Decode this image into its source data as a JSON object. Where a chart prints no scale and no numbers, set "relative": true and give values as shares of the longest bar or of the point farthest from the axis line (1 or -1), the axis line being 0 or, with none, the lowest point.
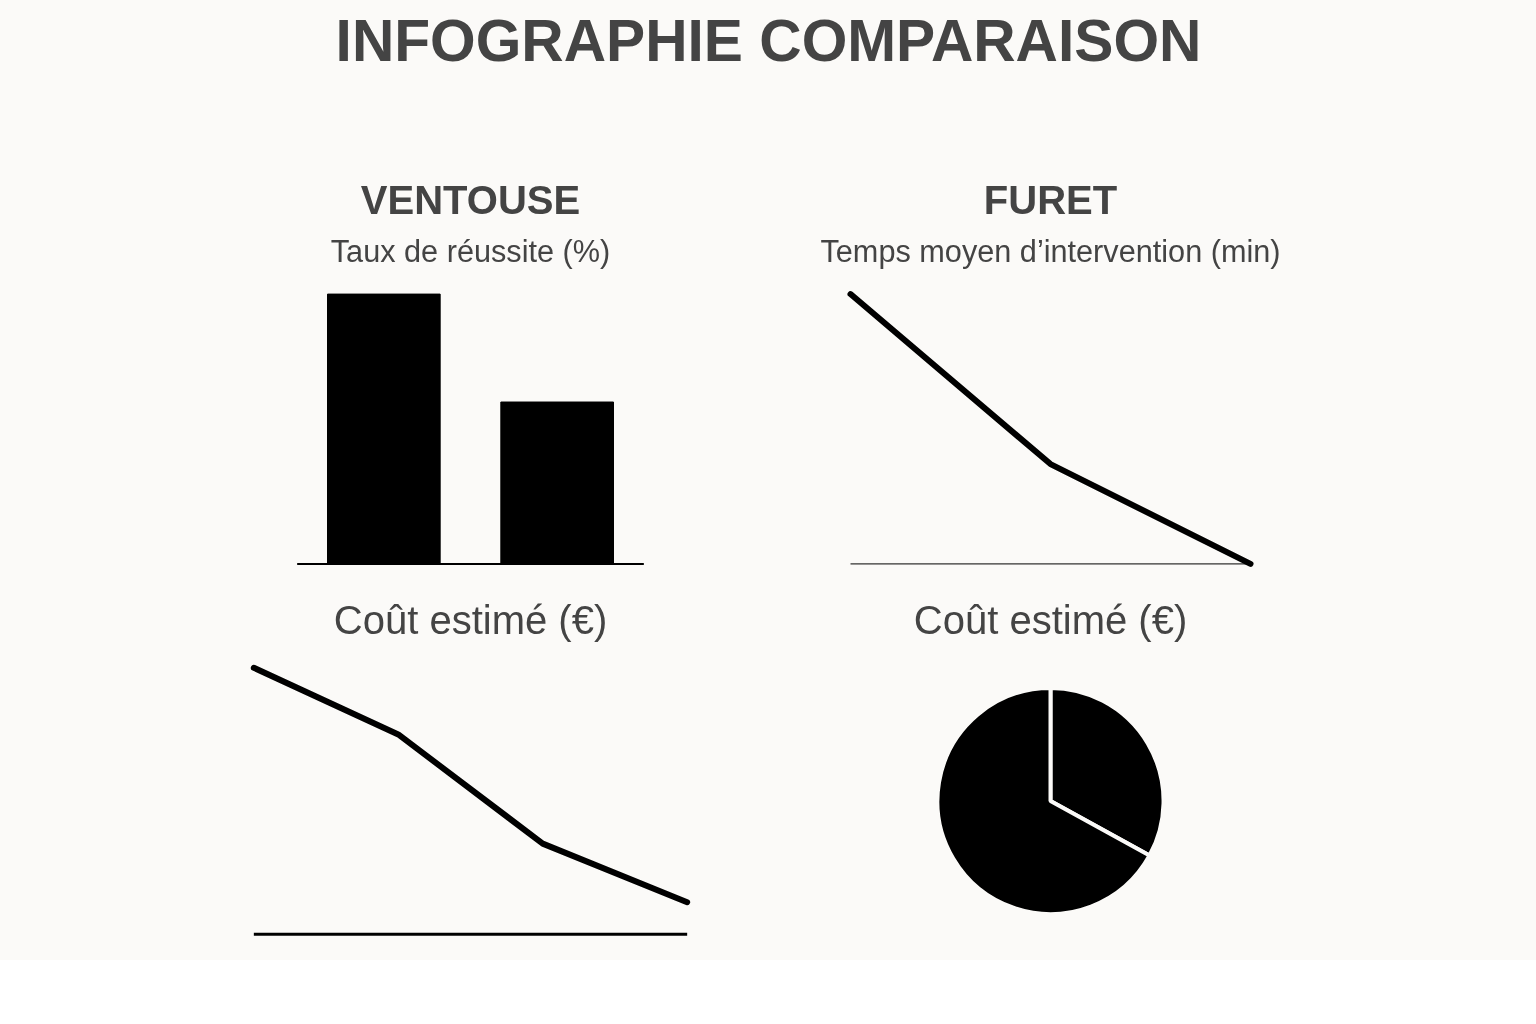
{
  "chart_data": [
    {
      "type": "other",
      "title": "INFOGRAPHIE COMPARAISON"
    },
    {
      "type": "bar",
      "title": "VENTOUSE",
      "subtitle": "Taux de réussite (%)",
      "categories": [
        null,
        null
      ],
      "values": [
        1,
        0.6
      ],
      "color": "#000000",
      "relative": true
    },
    {
      "type": "line",
      "title": "FURET",
      "subtitle": "Temps moyen d’intervention (min)",
      "categories": [
        null,
        null,
        null
      ],
      "values": [
        1,
        0.37,
        0
      ],
      "color": "#000000",
      "relative": true
    },
    {
      "type": "line",
      "title": "Coût estimé (€)",
      "categories": [
        null,
        null,
        null,
        null
      ],
      "values": [
        1,
        0.75,
        0.34,
        0.12
      ],
      "color": "#000000",
      "relative": true
    },
    {
      "type": "pie",
      "title": "Coût estimé (€)",
      "categories": [
        null,
        null
      ],
      "values": [
        33,
        67
      ],
      "colors": [
        "#000000",
        "#000000"
      ]
    }
  ]
}
